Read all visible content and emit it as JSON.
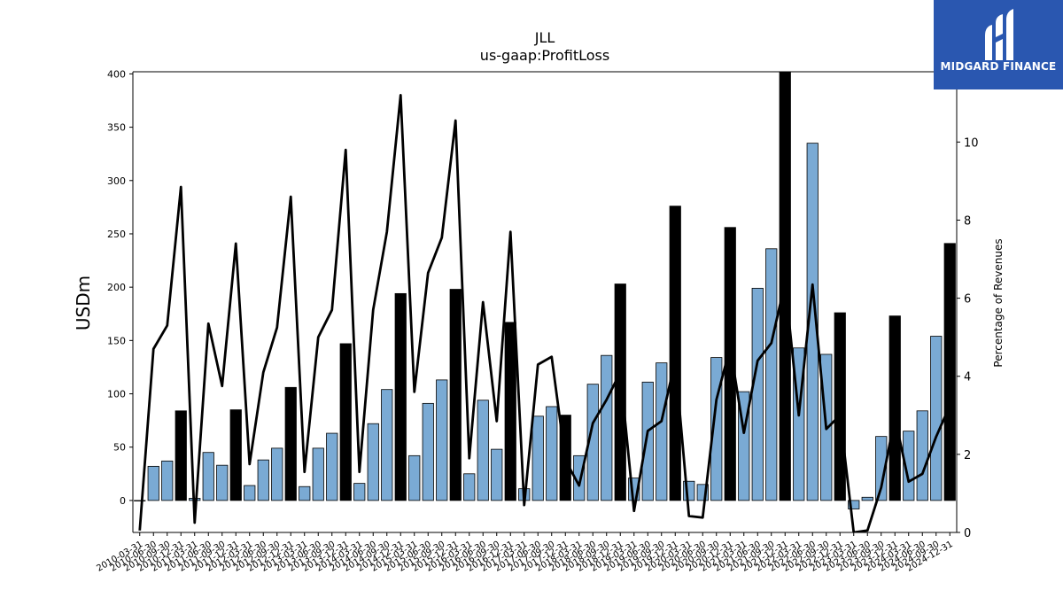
{
  "brand": {
    "name": "MIDGARD FINANCE",
    "bg_color": "#2a57b0"
  },
  "chart_data": {
    "type": "bar",
    "title": "JLL",
    "subtitle": "us-gaap:ProfitLoss",
    "ylabel": "USDm",
    "y2label": "Percentage of Revenues",
    "ylim": [
      -30,
      402
    ],
    "y2lim": [
      0,
      11.8
    ],
    "yticks": [
      0,
      50,
      100,
      150,
      200,
      250,
      300,
      350,
      400
    ],
    "y2ticks": [
      0,
      2,
      4,
      6,
      8,
      10
    ],
    "grid": false,
    "colors": {
      "quarter_bar": "#7aaad4",
      "annual_bar": "#000000",
      "line": "#000000"
    },
    "categories": [
      "2010-03-31",
      "2010-06-30",
      "2010-09-30",
      "2010-12-31",
      "2011-03-31",
      "2011-06-30",
      "2011-09-30",
      "2011-12-31",
      "2012-03-31",
      "2012-06-30",
      "2012-09-30",
      "2012-12-31",
      "2013-03-31",
      "2013-06-30",
      "2013-09-30",
      "2013-12-31",
      "2014-03-31",
      "2014-06-30",
      "2014-09-30",
      "2014-12-31",
      "2015-03-31",
      "2015-06-30",
      "2015-09-30",
      "2015-12-31",
      "2016-03-31",
      "2016-06-30",
      "2016-09-30",
      "2016-12-31",
      "2017-03-31",
      "2017-06-30",
      "2017-09-30",
      "2017-12-31",
      "2018-03-31",
      "2018-06-30",
      "2018-09-30",
      "2018-12-31",
      "2019-03-31",
      "2019-06-30",
      "2019-09-30",
      "2019-12-31",
      "2020-03-31",
      "2020-06-30",
      "2020-09-30",
      "2020-12-31",
      "2021-03-31",
      "2021-06-30",
      "2021-09-30",
      "2021-12-31",
      "2022-03-31",
      "2022-06-30",
      "2022-09-30",
      "2022-12-31",
      "2023-03-31",
      "2023-06-30",
      "2023-09-30",
      "2023-12-31",
      "2024-03-31",
      "2024-06-30",
      "2024-09-30",
      "2024-12-31"
    ],
    "series": [
      {
        "kind": "bar",
        "axis": "left",
        "values": [
          0,
          32,
          37,
          84,
          2,
          45,
          33,
          85,
          14,
          38,
          49,
          106,
          13,
          49,
          63,
          147,
          16,
          72,
          104,
          194,
          42,
          91,
          113,
          198,
          25,
          94,
          48,
          167,
          11,
          79,
          88,
          80,
          42,
          109,
          136,
          203,
          21,
          111,
          129,
          276,
          18,
          15,
          134,
          256,
          102,
          199,
          236,
          402,
          143,
          335,
          137,
          176,
          -8,
          3,
          60,
          173,
          65,
          84,
          154,
          241
        ],
        "annual": [
          false,
          false,
          false,
          true,
          false,
          false,
          false,
          true,
          false,
          false,
          false,
          true,
          false,
          false,
          false,
          true,
          false,
          false,
          false,
          true,
          false,
          false,
          false,
          true,
          false,
          false,
          false,
          true,
          false,
          false,
          false,
          true,
          false,
          false,
          false,
          true,
          false,
          false,
          false,
          true,
          false,
          false,
          false,
          true,
          false,
          false,
          false,
          true,
          false,
          false,
          false,
          true,
          false,
          false,
          false,
          true,
          false,
          false,
          false,
          true
        ]
      },
      {
        "kind": "line",
        "axis": "right",
        "values": [
          0.05,
          4.7,
          5.3,
          8.85,
          0.25,
          5.35,
          3.75,
          7.4,
          1.75,
          4.1,
          5.25,
          8.6,
          1.55,
          5.0,
          5.7,
          9.8,
          1.55,
          5.7,
          7.7,
          11.2,
          3.6,
          6.65,
          7.55,
          10.55,
          1.9,
          5.9,
          2.85,
          7.7,
          0.7,
          4.3,
          4.5,
          1.85,
          1.2,
          2.8,
          3.4,
          4.1,
          0.55,
          2.6,
          2.85,
          4.4,
          0.42,
          0.38,
          3.4,
          4.75,
          2.55,
          4.4,
          4.85,
          6.4,
          3.0,
          6.35,
          2.65,
          3.0,
          0.0,
          0.05,
          1.15,
          2.95,
          1.3,
          1.5,
          2.45,
          3.25
        ]
      }
    ]
  }
}
